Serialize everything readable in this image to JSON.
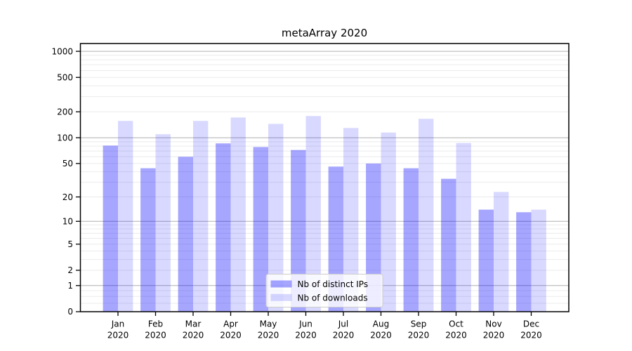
{
  "chart_data": {
    "type": "bar",
    "title": "metaArray 2020",
    "categories": [
      "Jan",
      "Feb",
      "Mar",
      "Apr",
      "May",
      "Jun",
      "Jul",
      "Aug",
      "Sep",
      "Oct",
      "Nov",
      "Dec"
    ],
    "category_year": "2020",
    "series": [
      {
        "name": "Nb of distinct IPs",
        "color": "rgba(0,0,255,0.35)",
        "values": [
          81,
          44,
          60,
          86,
          78,
          72,
          46,
          50,
          44,
          33,
          14,
          13
        ]
      },
      {
        "name": "Nb of downloads",
        "color": "rgba(0,0,255,0.15)",
        "values": [
          157,
          110,
          157,
          172,
          145,
          179,
          130,
          115,
          166,
          87,
          23,
          14
        ]
      }
    ],
    "yscale": "log1p",
    "yticks": [
      0,
      1,
      2,
      5,
      10,
      20,
      50,
      100,
      200,
      500,
      1000
    ],
    "ylim": [
      0,
      1230
    ],
    "xlabel": "",
    "ylabel": "",
    "grid": "on",
    "grid_major_values": [
      1,
      10,
      100,
      1000
    ],
    "grid_minor_values": [
      0.25,
      0.5,
      0.75,
      2,
      3,
      4,
      5,
      6,
      7,
      8,
      9,
      20,
      30,
      40,
      50,
      60,
      70,
      80,
      90,
      200,
      300,
      400,
      500,
      600,
      700,
      800,
      900
    ],
    "legend_position": "lower center",
    "colors": {
      "major_grid": "#b0b0b0",
      "minor_grid": "#ebebeb",
      "axis": "#000000",
      "legend_border": "#cccccc",
      "background": "#ffffff"
    }
  }
}
